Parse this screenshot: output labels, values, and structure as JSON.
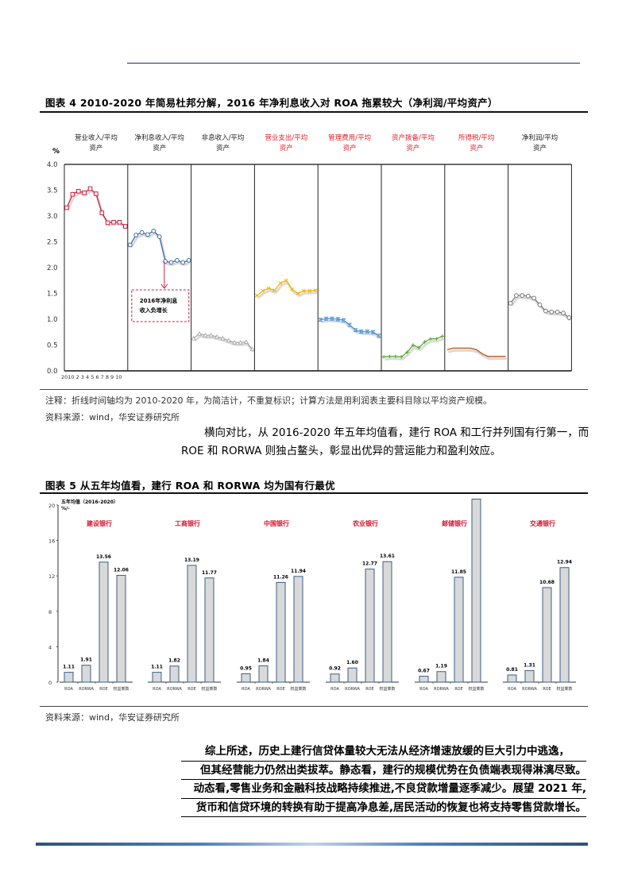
{
  "figure4": {
    "title": "图表 4 2010-2020 年简易杜邦分解，2016 年净利息收入对 ROA 拖累较大（净利润/平均资产）",
    "unit": "%",
    "yticks": [
      "4.0",
      "3.5",
      "3.0",
      "2.5",
      "2.0",
      "1.5",
      "1.0",
      "0.5",
      "0.0"
    ],
    "xticks": "2010  2 3 4 5 6 7 8 9 10",
    "annotation": [
      "2016年净利息",
      "收入负增长"
    ],
    "note": "注释：折线时间轴均为 2010-2020 年，为简洁计，不重复标识；计算方法是用利润表主要科目除以平均资产规模。",
    "source": "资料来源：wind，华安证券研究所"
  },
  "paragraph1": {
    "line1": "横向对比，从 2016-2020 年五年均值看，建行 ROA 和工行并列国有行第一，而",
    "line2": "ROE 和 RORWA 则独占鳌头，彰显出优异的营运能力和盈利效应。"
  },
  "figure5": {
    "title": "图表 5 从五年均值看，建行 ROA 和 RORWA 均为国有行最优",
    "subtitle": "五年均值（2016-2020）",
    "unit": "%/-",
    "yticks": [
      "20",
      "16",
      "12",
      "8",
      "4",
      "0"
    ],
    "source": "资料来源：wind，华安证券研究所"
  },
  "conclusion": {
    "lines": [
      "综上所述，历史上建行信贷体量较大无法从经济增速放缓的巨大引力中逃逸，",
      "但其经营能力仍然出类拔萃。静态看，建行的规模优势在负债端表现得淋漓尽致。",
      "动态看,零售业务和金融科技战略持续推进,不良贷款增量逐季减少。展望 2021 年,",
      "货币和信贷环境的转换有助于提高净息差,居民活动的恢复也将支持零售贷款增长。"
    ]
  },
  "chart_data": [
    {
      "type": "line",
      "title": "2010-2020 年简易杜邦分解，2016 年净利息收入对 ROA 拖累较大（净利润/平均资产）",
      "ylabel": "%",
      "ylim": [
        0,
        4.0
      ],
      "x": [
        2010,
        2011,
        2012,
        2013,
        2014,
        2015,
        2016,
        2017,
        2018,
        2019,
        2020
      ],
      "series": [
        {
          "name": "营业收入/平均资产",
          "color": "#d0203a",
          "highlight": false,
          "values": [
            3.16,
            3.42,
            3.48,
            3.45,
            3.53,
            3.43,
            3.06,
            2.87,
            2.88,
            2.88,
            2.8
          ]
        },
        {
          "name": "净利息收入/平均资产",
          "color": "#3a6aa8",
          "highlight": false,
          "values": [
            2.44,
            2.63,
            2.68,
            2.64,
            2.71,
            2.6,
            2.12,
            2.1,
            2.14,
            2.1,
            2.14
          ]
        },
        {
          "name": "非息收入/平均资产",
          "color": "#a8a8a8",
          "highlight": false,
          "values": [
            0.63,
            0.72,
            0.69,
            0.69,
            0.66,
            0.63,
            0.59,
            0.55,
            0.55,
            0.56,
            0.42
          ]
        },
        {
          "name": "营业支出/平均资产",
          "color": "#f0b400",
          "highlight": true,
          "values": [
            1.46,
            1.55,
            1.6,
            1.56,
            1.7,
            1.75,
            1.58,
            1.5,
            1.55,
            1.55,
            1.56
          ]
        },
        {
          "name": "管理费用/平均资产",
          "color": "#4a90d8",
          "highlight": true,
          "values": [
            0.99,
            1.01,
            1.01,
            1.0,
            0.98,
            0.89,
            0.79,
            0.76,
            0.76,
            0.75,
            0.68
          ]
        },
        {
          "name": "资产拨备/平均资产",
          "color": "#5aaa3a",
          "highlight": true,
          "values": [
            0.27,
            0.28,
            0.28,
            0.27,
            0.36,
            0.5,
            0.45,
            0.56,
            0.62,
            0.62,
            0.67
          ]
        },
        {
          "name": "所得税/平均资产",
          "color": "#c0501a",
          "highlight": true,
          "values": [
            0.41,
            0.44,
            0.44,
            0.44,
            0.44,
            0.41,
            0.33,
            0.28,
            0.28,
            0.28,
            0.28
          ]
        },
        {
          "name": "净利润/平均资产",
          "color": "#777777",
          "highlight": false,
          "values": [
            1.31,
            1.46,
            1.46,
            1.45,
            1.41,
            1.28,
            1.16,
            1.14,
            1.14,
            1.12,
            1.03
          ]
        }
      ],
      "annotation": "2016年净利息收入负增长"
    },
    {
      "type": "bar",
      "title": "从五年均值看，建行 ROA 和 RORWA 均为国有行最优",
      "subtitle": "五年均值（2016-2020）",
      "ylabel": "%/-",
      "ylim": [
        0,
        20
      ],
      "categories": [
        "ROA",
        "RORWA",
        "ROE",
        "权益乘数"
      ],
      "series": [
        {
          "name": "建设银行",
          "values": [
            1.11,
            1.91,
            13.56,
            12.06
          ]
        },
        {
          "name": "工商银行",
          "values": [
            1.11,
            1.82,
            13.19,
            11.77
          ]
        },
        {
          "name": "中国银行",
          "values": [
            0.95,
            1.84,
            11.26,
            11.94
          ]
        },
        {
          "name": "农业银行",
          "values": [
            0.92,
            1.6,
            12.77,
            13.61
          ]
        },
        {
          "name": "邮储银行",
          "values": [
            0.67,
            1.19,
            11.85,
            20.67
          ]
        },
        {
          "name": "交通银行",
          "values": [
            0.81,
            1.31,
            10.68,
            12.94
          ]
        }
      ]
    }
  ]
}
